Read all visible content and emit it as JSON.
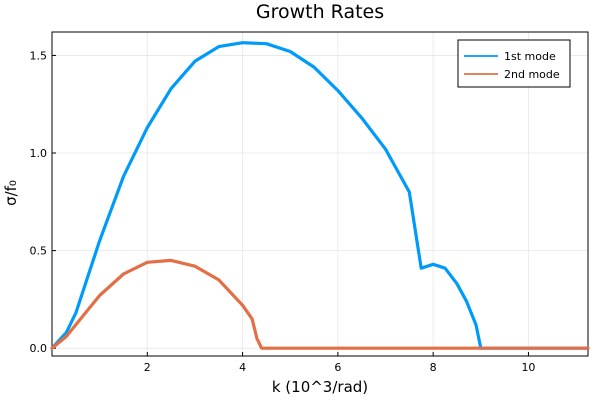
{
  "chart_data": {
    "type": "line",
    "title": "Growth Rates",
    "xlabel": "k (10^3/rad)",
    "ylabel": "σ/f₀",
    "xlim": [
      0.0,
      11.25
    ],
    "ylim": [
      -0.04,
      1.62
    ],
    "xticks": [
      2,
      4,
      6,
      8,
      10
    ],
    "yticks": [
      0.0,
      0.5,
      1.0,
      1.5
    ],
    "xtick_labels": [
      "2",
      "4",
      "6",
      "8",
      "10"
    ],
    "ytick_labels": [
      "0.0",
      "0.5",
      "1.0",
      "1.5"
    ],
    "grid": true,
    "legend_position": "top-right",
    "series": [
      {
        "name": "1st mode",
        "color": "#009af9",
        "x": [
          0.0,
          0.3,
          0.5,
          1.0,
          1.5,
          2.0,
          2.5,
          3.0,
          3.5,
          4.0,
          4.5,
          5.0,
          5.5,
          6.0,
          6.5,
          7.0,
          7.5,
          7.75,
          8.0,
          8.25,
          8.5,
          8.7,
          8.9,
          9.0,
          9.2,
          10.0,
          11.25
        ],
        "values": [
          0.0,
          0.08,
          0.18,
          0.55,
          0.88,
          1.13,
          1.33,
          1.47,
          1.545,
          1.565,
          1.56,
          1.52,
          1.44,
          1.32,
          1.18,
          1.02,
          0.8,
          0.41,
          0.43,
          0.41,
          0.33,
          0.24,
          0.12,
          0.0,
          0.0,
          0.0,
          0.0
        ]
      },
      {
        "name": "2nd mode",
        "color": "#e26f46",
        "x": [
          0.0,
          0.3,
          0.5,
          1.0,
          1.5,
          2.0,
          2.5,
          3.0,
          3.5,
          4.0,
          4.2,
          4.3,
          4.4,
          4.5,
          5.0,
          8.0,
          11.25
        ],
        "values": [
          0.0,
          0.06,
          0.12,
          0.27,
          0.38,
          0.44,
          0.45,
          0.42,
          0.35,
          0.22,
          0.15,
          0.05,
          0.0,
          0.0,
          0.0,
          0.0,
          0.0
        ]
      }
    ]
  }
}
